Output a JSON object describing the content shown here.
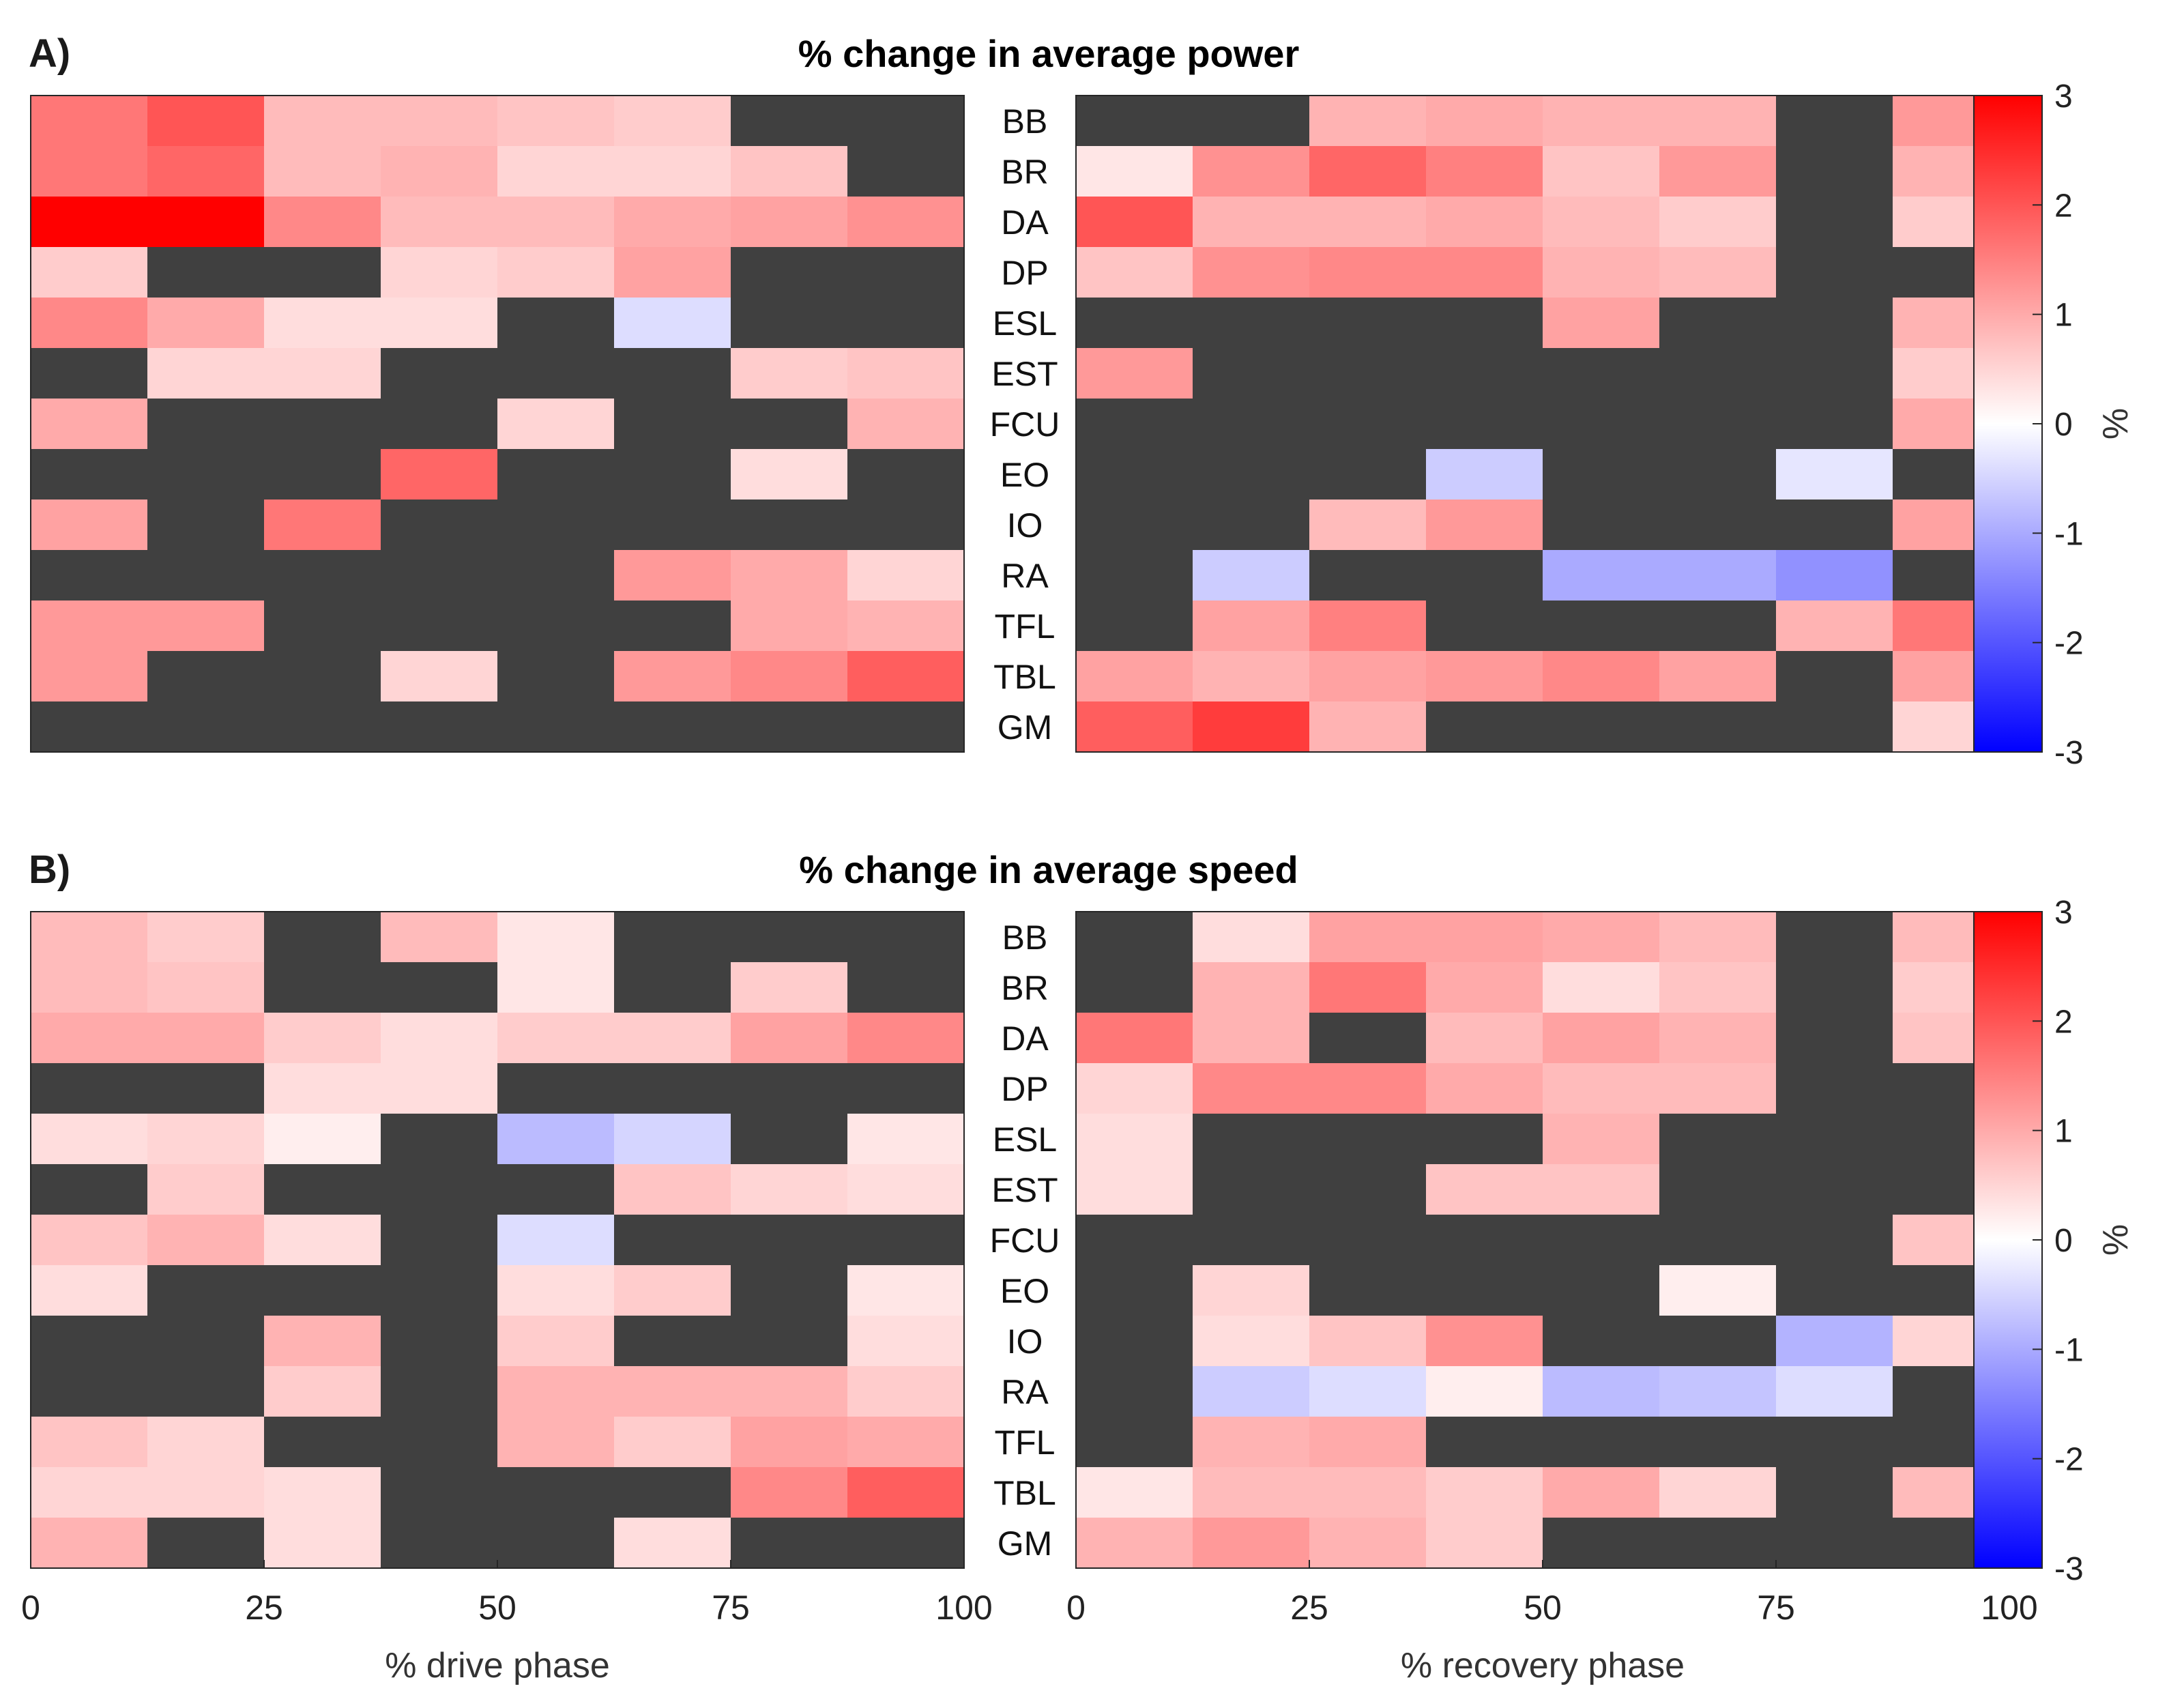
{
  "chart_data": [
    {
      "type": "heatmap",
      "panel_label": "A)",
      "title": "% change in average power",
      "muscles": [
        "BB",
        "BR",
        "DA",
        "DP",
        "ESL",
        "EST",
        "FCU",
        "EO",
        "IO",
        "RA",
        "TFL",
        "TBL",
        "GM"
      ],
      "drive": {
        "xlabel": "% drive phase",
        "xticks": [
          "0",
          "25",
          "50",
          "75",
          "100"
        ],
        "x_range": [
          0,
          100
        ],
        "values": [
          [
            1.6,
            2.0,
            0.8,
            0.8,
            0.7,
            0.6,
            null,
            null
          ],
          [
            1.6,
            1.8,
            0.8,
            0.9,
            0.5,
            0.5,
            0.7,
            null
          ],
          [
            3.1,
            3.0,
            1.4,
            0.8,
            0.8,
            1.0,
            1.1,
            1.3
          ],
          [
            0.6,
            null,
            null,
            0.5,
            0.6,
            1.1,
            null,
            null
          ],
          [
            1.4,
            1.0,
            0.4,
            0.4,
            null,
            -0.4,
            null,
            null
          ],
          [
            null,
            0.5,
            0.5,
            null,
            null,
            null,
            0.6,
            0.7
          ],
          [
            1.0,
            null,
            null,
            null,
            0.5,
            null,
            null,
            0.9
          ],
          [
            null,
            null,
            null,
            1.8,
            null,
            null,
            0.4,
            null
          ],
          [
            1.1,
            null,
            1.6,
            null,
            null,
            null,
            null,
            null
          ],
          [
            null,
            null,
            null,
            null,
            null,
            1.2,
            1.0,
            0.5
          ],
          [
            1.2,
            1.2,
            null,
            null,
            null,
            null,
            1.0,
            0.9
          ],
          [
            1.2,
            null,
            null,
            0.5,
            null,
            1.2,
            1.4,
            1.9
          ],
          [
            null,
            null,
            null,
            null,
            null,
            null,
            null,
            null
          ]
        ]
      },
      "recovery": {
        "xlabel": "% recovery phase",
        "xticks": [
          "0",
          "25",
          "50",
          "75",
          "100"
        ],
        "x_range": [
          0,
          100
        ],
        "values": [
          [
            null,
            null,
            0.9,
            1.0,
            0.9,
            0.9,
            null,
            1.2
          ],
          [
            0.3,
            1.3,
            1.8,
            1.5,
            0.7,
            1.2,
            null,
            0.9
          ],
          [
            2.0,
            0.9,
            0.9,
            1.0,
            0.8,
            0.6,
            null,
            0.6
          ],
          [
            0.7,
            1.3,
            1.4,
            1.4,
            0.9,
            0.8,
            null,
            null
          ],
          [
            null,
            null,
            null,
            null,
            1.1,
            null,
            null,
            0.9
          ],
          [
            1.2,
            null,
            null,
            null,
            null,
            null,
            null,
            0.6
          ],
          [
            null,
            null,
            null,
            null,
            null,
            null,
            null,
            1.0
          ],
          [
            null,
            null,
            null,
            -0.6,
            null,
            null,
            -0.3,
            null
          ],
          [
            null,
            null,
            0.8,
            1.2,
            null,
            null,
            null,
            1.1
          ],
          [
            null,
            -0.6,
            null,
            null,
            -1.0,
            -1.0,
            -1.3,
            null
          ],
          [
            null,
            1.1,
            1.5,
            null,
            null,
            null,
            0.9,
            1.6
          ],
          [
            1.1,
            0.9,
            1.1,
            1.2,
            1.4,
            1.1,
            null,
            1.1
          ],
          [
            1.9,
            2.3,
            0.9,
            null,
            null,
            null,
            null,
            0.5
          ]
        ]
      },
      "colorbar": {
        "range": [
          -3,
          3
        ],
        "ticks": [
          "3",
          "2",
          "1",
          "0",
          "-1",
          "-2",
          "-3"
        ],
        "label": "%"
      }
    },
    {
      "type": "heatmap",
      "panel_label": "B)",
      "title": "% change in average speed",
      "muscles": [
        "BB",
        "BR",
        "DA",
        "DP",
        "ESL",
        "EST",
        "FCU",
        "EO",
        "IO",
        "RA",
        "TFL",
        "TBL",
        "GM"
      ],
      "drive": {
        "xlabel": "% drive phase",
        "xticks": [
          "0",
          "25",
          "50",
          "75",
          "100"
        ],
        "x_range": [
          0,
          100
        ],
        "values": [
          [
            0.8,
            0.6,
            null,
            0.8,
            0.3,
            null,
            null,
            null
          ],
          [
            0.8,
            0.7,
            null,
            null,
            0.3,
            null,
            0.6,
            null
          ],
          [
            1.0,
            1.0,
            0.6,
            0.4,
            0.6,
            0.6,
            1.1,
            1.4
          ],
          [
            null,
            null,
            0.4,
            0.4,
            null,
            null,
            null,
            null
          ],
          [
            0.4,
            0.5,
            0.2,
            null,
            -0.8,
            -0.5,
            null,
            0.3
          ],
          [
            null,
            0.6,
            null,
            null,
            null,
            0.7,
            0.5,
            0.4
          ],
          [
            0.7,
            0.9,
            0.4,
            null,
            -0.4,
            null,
            null,
            null
          ],
          [
            0.4,
            null,
            null,
            null,
            0.4,
            0.6,
            null,
            0.3
          ],
          [
            null,
            null,
            0.9,
            null,
            0.6,
            null,
            null,
            0.4
          ],
          [
            null,
            null,
            0.6,
            null,
            0.9,
            0.9,
            0.9,
            0.6
          ],
          [
            0.7,
            0.5,
            null,
            null,
            0.9,
            0.6,
            1.1,
            1.0
          ],
          [
            0.5,
            0.5,
            0.4,
            null,
            null,
            null,
            1.4,
            1.9
          ],
          [
            0.9,
            null,
            0.4,
            null,
            null,
            0.4,
            null,
            null
          ]
        ]
      },
      "recovery": {
        "xlabel": "% recovery phase",
        "xticks": [
          "0",
          "25",
          "50",
          "75",
          "100"
        ],
        "x_range": [
          0,
          100
        ],
        "values": [
          [
            null,
            0.4,
            1.1,
            1.1,
            1.0,
            0.8,
            null,
            0.8
          ],
          [
            null,
            0.9,
            1.6,
            1.0,
            0.4,
            0.7,
            null,
            0.6
          ],
          [
            1.6,
            0.9,
            null,
            0.8,
            1.1,
            0.9,
            null,
            0.7
          ],
          [
            0.5,
            1.4,
            1.4,
            1.0,
            0.8,
            0.8,
            null,
            null
          ],
          [
            0.4,
            null,
            null,
            null,
            0.9,
            null,
            null,
            null
          ],
          [
            0.4,
            null,
            null,
            0.7,
            0.7,
            null,
            null,
            null
          ],
          [
            null,
            null,
            null,
            null,
            null,
            null,
            null,
            0.7
          ],
          [
            null,
            0.5,
            null,
            null,
            null,
            0.2,
            null,
            null
          ],
          [
            null,
            0.4,
            0.7,
            1.3,
            null,
            null,
            -0.9,
            0.5
          ],
          [
            null,
            -0.6,
            -0.4,
            0.2,
            -0.8,
            -0.7,
            -0.4,
            null
          ],
          [
            null,
            0.9,
            1.0,
            null,
            null,
            null,
            null,
            null
          ],
          [
            0.3,
            0.8,
            0.8,
            0.6,
            1.0,
            0.5,
            null,
            0.8
          ],
          [
            0.9,
            1.2,
            0.9,
            0.6,
            null,
            null,
            null,
            null
          ]
        ]
      },
      "colorbar": {
        "range": [
          -3,
          3
        ],
        "ticks": [
          "3",
          "2",
          "1",
          "0",
          "-1",
          "-2",
          "-3"
        ],
        "label": "%"
      }
    }
  ]
}
